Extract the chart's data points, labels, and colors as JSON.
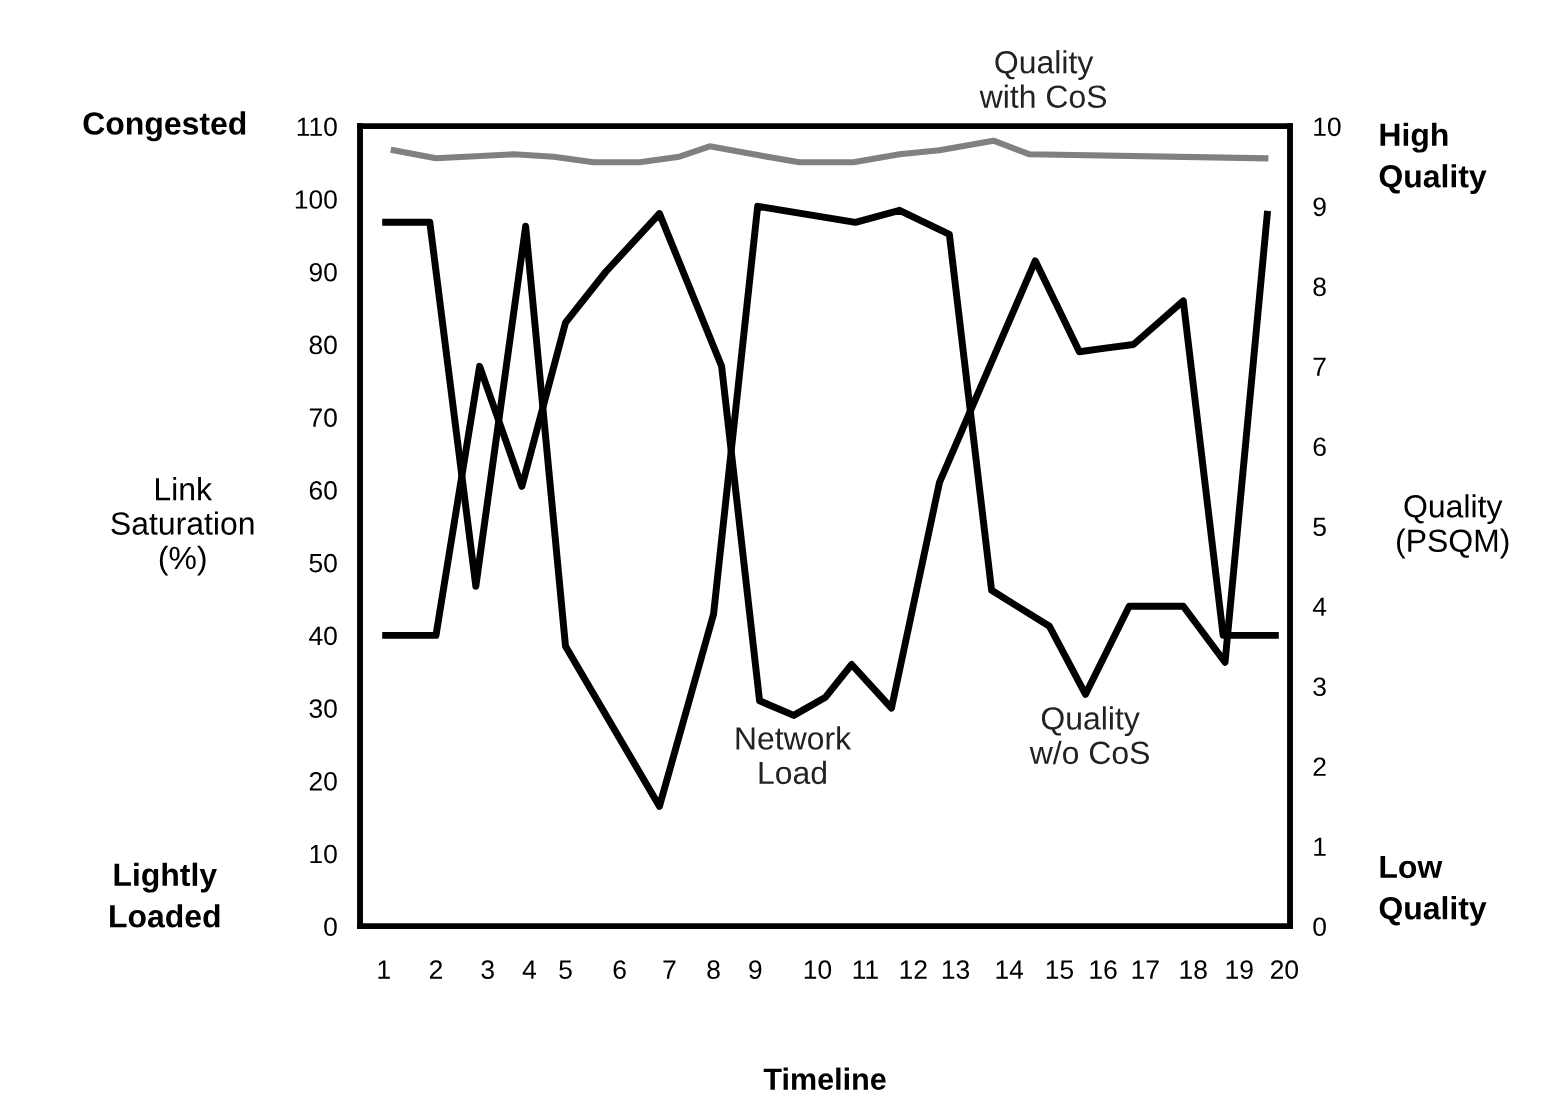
{
  "chart_data": {
    "type": "line",
    "xlabel": "Timeline",
    "ylabel": "Link\nSaturation\n(%)",
    "y2label": "Quality\n(PSQM)",
    "annotations": [
      "Congested",
      "Lightly\nLoaded",
      "High\nQuality",
      "Low\nQuality"
    ],
    "xlim": [
      0.5,
      20.1
    ],
    "xticks": [
      1,
      {
        "value": 2.1,
        "label": "2"
      },
      {
        "value": 3.19,
        "label": "3"
      },
      {
        "value": 4.07,
        "label": "4"
      },
      {
        "value": 4.83,
        "label": "5"
      },
      {
        "value": 5.97,
        "label": "6"
      },
      {
        "value": 7.02,
        "label": "7"
      },
      {
        "value": 7.95,
        "label": "8"
      },
      {
        "value": 8.83,
        "label": "9"
      },
      {
        "value": 10.14,
        "label": "10"
      },
      {
        "value": 11.15,
        "label": "11"
      },
      {
        "value": 12.16,
        "label": "12"
      },
      {
        "value": 13.05,
        "label": "13"
      },
      {
        "value": 14.18,
        "label": "14"
      },
      {
        "value": 15.24,
        "label": "15"
      },
      {
        "value": 16.16,
        "label": "16"
      },
      {
        "value": 17.05,
        "label": "17"
      },
      {
        "value": 18.06,
        "label": "18"
      },
      {
        "value": 19.03,
        "label": "19"
      },
      {
        "value": 19.98,
        "label": "20"
      }
    ],
    "ylim": [
      0,
      110
    ],
    "yticks": [
      0,
      10,
      20,
      30,
      40,
      50,
      60,
      70,
      80,
      90,
      100,
      110
    ],
    "y2lim": [
      0,
      10
    ],
    "y2ticks": [
      0,
      1,
      2,
      3,
      4,
      5,
      6,
      7,
      8,
      9,
      10
    ],
    "grid": false,
    "legend": false,
    "marker": "none",
    "line_style": "solid",
    "series": [
      {
        "name": "Quality\nwith CoS",
        "color": "#808080",
        "axis": "y2",
        "x": [
          1.21,
          2.1,
          3.74,
          4.58,
          5.42,
          6.39,
          7.23,
          7.87,
          8.79,
          9.76,
          10.9,
          11.87,
          12.71,
          13.85,
          14.61,
          19.58
        ],
        "values": [
          9.7,
          9.6,
          9.65,
          9.62,
          9.55,
          9.55,
          9.62,
          9.75,
          9.65,
          9.55,
          9.55,
          9.65,
          9.7,
          9.82,
          9.65,
          9.6
        ]
      },
      {
        "name": "Network\nLoad",
        "color": "#000000",
        "x": [
          1.04,
          2.1,
          3.02,
          3.91,
          4.83,
          5.68,
          6.81,
          8.12,
          8.92,
          9.64,
          10.31,
          10.86,
          11.7,
          12.71,
          14.73,
          15.66,
          16.21,
          16.8,
          17.85,
          18.69,
          19.79
        ],
        "values": [
          40,
          40,
          77,
          60.5,
          83,
          90,
          98,
          77,
          31,
          29,
          31.5,
          36,
          30,
          61,
          91.5,
          79,
          79.5,
          80,
          86,
          40,
          40
        ]
      },
      {
        "name": "Quality\nw/o CoS",
        "color": "#000000",
        "axis": "y2",
        "x": [
          1.04,
          1.97,
          2.94,
          3.99,
          4.83,
          6.81,
          7.95,
          8.88,
          10.94,
          11.87,
          12.92,
          13.81,
          15.03,
          15.79,
          16.71,
          17.85,
          18.73,
          19.62
        ],
        "values": [
          8.8,
          8.8,
          4.25,
          8.75,
          3.5,
          1.5,
          3.9,
          9.0,
          8.8,
          8.95,
          8.65,
          4.2,
          3.75,
          2.9,
          4.0,
          4.0,
          3.3,
          8.9
        ]
      }
    ]
  }
}
